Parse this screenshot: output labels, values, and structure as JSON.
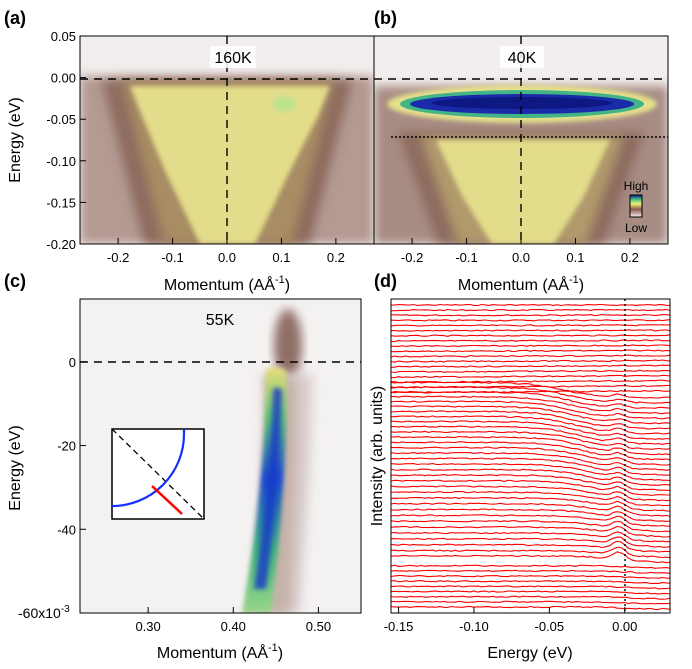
{
  "figure": {
    "panels": {
      "a": {
        "letter": "(a)",
        "temp": "160K"
      },
      "b": {
        "letter": "(b)",
        "temp": "40K",
        "colorbar_high": "High",
        "colorbar_low": "Low"
      },
      "c": {
        "letter": "(c)",
        "temp": "55K"
      },
      "d": {
        "letter": "(d)"
      }
    },
    "axes": {
      "energy_ev": "Energy (eV)",
      "momentum_a": "Momentum (AÅ",
      "momentum_sup": "-1",
      "momentum_close": ")",
      "intensity": "Intensity (arb. units)",
      "c_exp": "-60x10",
      "c_exp_sup": "-3"
    },
    "colors": {
      "edc_line": "#ff0000",
      "inset_arc": "#1430ff",
      "inset_cut": "#ff0000"
    }
  },
  "chart_data": [
    {
      "panel": "a",
      "type": "heatmap",
      "title": "160K",
      "xlabel": "Momentum (AÅ^-1)",
      "ylabel": "Energy (eV)",
      "xlim": [
        -0.27,
        0.27
      ],
      "ylim": [
        -0.2,
        0.05
      ],
      "xticks": [
        "-0.2",
        "-0.1",
        "0.0",
        "0.1",
        "0.2"
      ],
      "yticks": [
        "0.05",
        "0.00",
        "-0.05",
        "-0.10",
        "-0.15",
        "-0.20"
      ],
      "reference_lines": {
        "fermi_level_energy": 0.0,
        "k_zero": 0.0
      }
    },
    {
      "panel": "b",
      "type": "heatmap",
      "title": "40K",
      "xlabel": "Momentum (AÅ^-1)",
      "xlim": [
        -0.27,
        0.27
      ],
      "ylim": [
        -0.2,
        0.05
      ],
      "xticks": [
        "-0.2",
        "-0.1",
        "0.0",
        "0.1",
        "0.2"
      ],
      "reference_lines": {
        "fermi_level_energy": 0.0,
        "k_zero": 0.0,
        "dotted_energy": -0.07
      },
      "flat_band_energy": -0.035
    },
    {
      "panel": "c",
      "type": "heatmap",
      "title": "55K",
      "xlabel": "Momentum (AÅ^-1)",
      "ylabel": "Energy (eV)",
      "xlim": [
        0.22,
        0.55
      ],
      "ylim": [
        -60,
        15
      ],
      "y_scale_note": "x10^-3",
      "xticks": [
        "0.30",
        "0.40",
        "0.50"
      ],
      "yticks": [
        "0",
        "-20",
        "-40"
      ],
      "band_dispersion": {
        "k_at_0_meV": 0.46,
        "k_at_minus_60_meV": 0.415
      }
    },
    {
      "panel": "d",
      "type": "line",
      "subtype": "EDC stack",
      "xlabel": "Energy (eV)",
      "ylabel": "Intensity (arb. units)",
      "xlim": [
        -0.155,
        0.03
      ],
      "xticks": [
        "-0.15",
        "-0.10",
        "-0.05",
        "0.00"
      ],
      "series_count": 60,
      "peak_energy_near_kf": -0.003
    }
  ]
}
